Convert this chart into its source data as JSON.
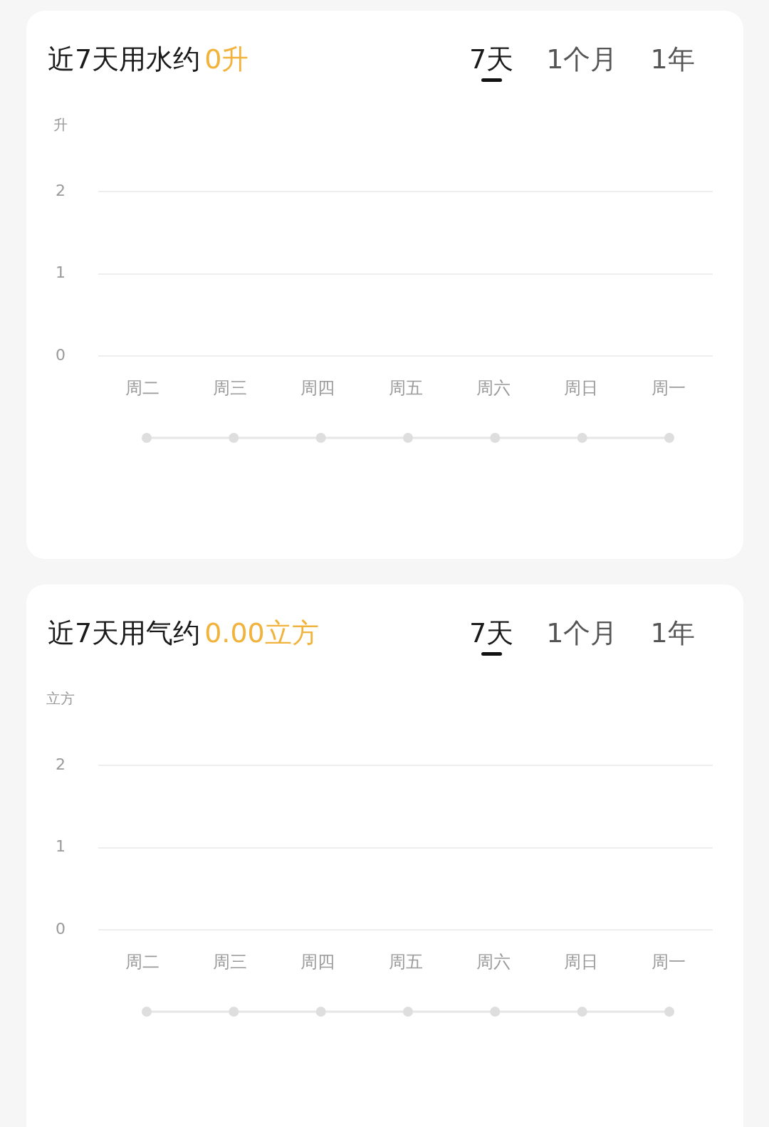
{
  "chart_data": [
    {
      "type": "bar",
      "title": "近7天用水约",
      "subtitle": "0升",
      "ylabel": "升",
      "annotations": [
        "7天",
        "1个月",
        "1年"
      ],
      "categories": [
        "周二",
        "周三",
        "周四",
        "周五",
        "周六",
        "周日",
        "周一"
      ],
      "values": [
        0,
        0,
        0,
        0,
        0,
        0,
        0
      ],
      "ylim": [
        0,
        2
      ],
      "yticks": [
        0,
        1,
        2
      ],
      "grid": "y"
    },
    {
      "type": "bar",
      "title": "近7天用气约",
      "subtitle": "0.00立方",
      "ylabel": "立方",
      "annotations": [
        "7天",
        "1个月",
        "1年"
      ],
      "categories": [
        "周二",
        "周三",
        "周四",
        "周五",
        "周六",
        "周日",
        "周一"
      ],
      "values": [
        0,
        0,
        0,
        0,
        0,
        0,
        0
      ],
      "ylim": [
        0,
        2
      ],
      "yticks": [
        0,
        1,
        2
      ],
      "grid": "y"
    }
  ]
}
